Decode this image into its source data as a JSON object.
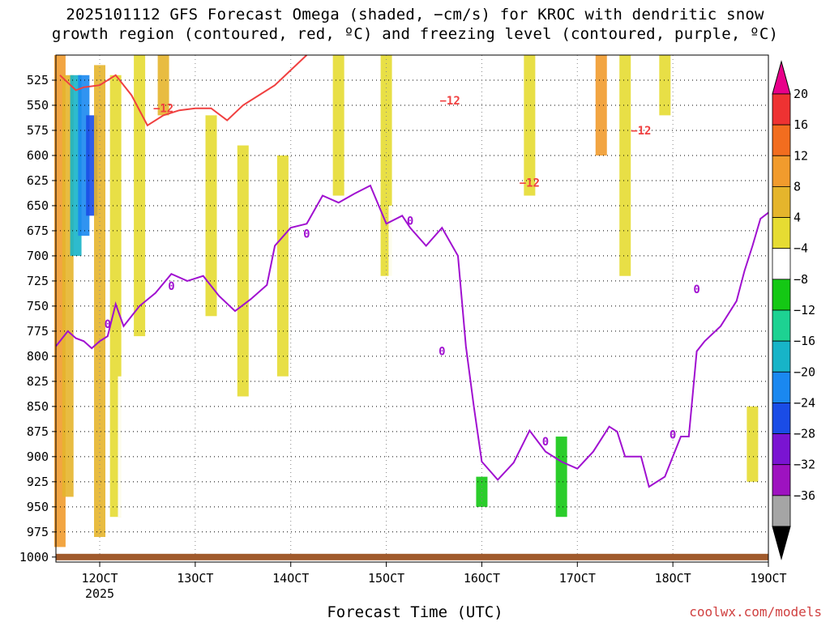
{
  "header": {
    "title_line1": "2025101112 GFS Forecast Omega (shaded, −cm/s) for KROC with dendritic snow",
    "title_line2": "growth region (contoured, red, ºC) and freezing level (contoured, purple, ºC)"
  },
  "footer": {
    "credit": "coolwx.com/models"
  },
  "chart_data": {
    "type": "heatmap",
    "title": "2025101112 GFS Forecast Omega (shaded, −cm/s) for KROC with dendritic snow growth region (contoured, red, ºC) and freezing level (contoured, purple, ºC)",
    "xlabel": "Forecast Time (UTC)",
    "ylabel": "",
    "x_ticks": [
      {
        "hour": 12,
        "label": "12OCT"
      },
      {
        "hour": 24,
        "label": "13OCT"
      },
      {
        "hour": 36,
        "label": "14OCT"
      },
      {
        "hour": 48,
        "label": "15OCT"
      },
      {
        "hour": 60,
        "label": "16OCT"
      },
      {
        "hour": 72,
        "label": "17OCT"
      },
      {
        "hour": 84,
        "label": "18OCT"
      },
      {
        "hour": 96,
        "label": "19OCT"
      }
    ],
    "x_sub_label": "2025",
    "xlim_hours": [
      6.5,
      96
    ],
    "y_levels_hpa": [
      525,
      550,
      575,
      600,
      625,
      650,
      675,
      700,
      725,
      750,
      775,
      800,
      825,
      850,
      875,
      900,
      925,
      950,
      975,
      1000
    ],
    "ylim_hpa": [
      500,
      1005
    ],
    "grid": true,
    "colorbar": {
      "labels": [
        "20",
        "16",
        "12",
        "8",
        "4",
        "−4",
        "−8",
        "−12",
        "−16",
        "−20",
        "−24",
        "−28",
        "−32",
        "−36"
      ],
      "colors": [
        "#e8008a",
        "#ee3232",
        "#f26d1f",
        "#f19b2d",
        "#e5b52c",
        "#e6dc32",
        "#ffffff",
        "#14c814",
        "#1dd292",
        "#17b4c8",
        "#1a88f0",
        "#1a4ce6",
        "#7a14d2",
        "#9e12c0",
        "#a5a5a5",
        "#000000"
      ]
    },
    "omega_patches": [
      {
        "hour": 7,
        "p_top": 500,
        "p_bot": 990,
        "value": 12
      },
      {
        "hour": 8,
        "p_top": 520,
        "p_bot": 940,
        "value": 8
      },
      {
        "hour": 9,
        "p_top": 520,
        "p_bot": 700,
        "value": -16
      },
      {
        "hour": 10,
        "p_top": 520,
        "p_bot": 680,
        "value": -20
      },
      {
        "hour": 11,
        "p_top": 560,
        "p_bot": 660,
        "value": -24
      },
      {
        "hour": 12,
        "p_top": 510,
        "p_bot": 980,
        "value": 8
      },
      {
        "hour": 14,
        "p_top": 520,
        "p_bot": 960,
        "value": 4
      },
      {
        "hour": 15,
        "p_top": 820,
        "p_bot": 960,
        "value": -4
      },
      {
        "hour": 17,
        "p_top": 500,
        "p_bot": 780,
        "value": 4
      },
      {
        "hour": 20,
        "p_top": 500,
        "p_bot": 560,
        "value": 8
      },
      {
        "hour": 21,
        "p_top": 920,
        "p_bot": 975,
        "value": -4
      },
      {
        "hour": 26,
        "p_top": 560,
        "p_bot": 760,
        "value": 4
      },
      {
        "hour": 30,
        "p_top": 590,
        "p_bot": 840,
        "value": 4
      },
      {
        "hour": 35,
        "p_top": 600,
        "p_bot": 820,
        "value": 4
      },
      {
        "hour": 42,
        "p_top": 500,
        "p_bot": 640,
        "value": 4
      },
      {
        "hour": 48,
        "p_top": 500,
        "p_bot": 720,
        "value": 4
      },
      {
        "hour": 49,
        "p_top": 650,
        "p_bot": 740,
        "value": -4
      },
      {
        "hour": 52,
        "p_top": 930,
        "p_bot": 985,
        "value": -4
      },
      {
        "hour": 60,
        "p_top": 845,
        "p_bot": 985,
        "value": -4
      },
      {
        "hour": 60,
        "p_top": 920,
        "p_bot": 950,
        "value": -8
      },
      {
        "hour": 66,
        "p_top": 500,
        "p_bot": 640,
        "value": 4
      },
      {
        "hour": 70,
        "p_top": 820,
        "p_bot": 980,
        "value": -4
      },
      {
        "hour": 70,
        "p_top": 880,
        "p_bot": 960,
        "value": -8
      },
      {
        "hour": 75,
        "p_top": 500,
        "p_bot": 600,
        "value": 12
      },
      {
        "hour": 78,
        "p_top": 500,
        "p_bot": 720,
        "value": 4
      },
      {
        "hour": 83,
        "p_top": 500,
        "p_bot": 560,
        "value": 4
      },
      {
        "hour": 94,
        "p_top": 850,
        "p_bot": 925,
        "value": 4
      }
    ],
    "dgz_contour_label": "−12",
    "dgz_minus12_line": [
      {
        "hour": 7,
        "hpa": 520
      },
      {
        "hour": 9,
        "hpa": 535
      },
      {
        "hour": 10,
        "hpa": 532
      },
      {
        "hour": 12,
        "hpa": 530
      },
      {
        "hour": 14,
        "hpa": 520
      },
      {
        "hour": 16,
        "hpa": 540
      },
      {
        "hour": 18,
        "hpa": 570
      },
      {
        "hour": 20,
        "hpa": 560
      },
      {
        "hour": 22,
        "hpa": 555
      },
      {
        "hour": 24,
        "hpa": 553
      },
      {
        "hour": 26,
        "hpa": 553
      },
      {
        "hour": 28,
        "hpa": 565
      },
      {
        "hour": 30,
        "hpa": 550
      },
      {
        "hour": 32,
        "hpa": 540
      },
      {
        "hour": 34,
        "hpa": 530
      },
      {
        "hour": 36,
        "hpa": 515
      },
      {
        "hour": 38,
        "hpa": 500
      }
    ],
    "freezing_level_label": "0",
    "freezing_level_line": [
      {
        "hour": 6.5,
        "hpa": 790
      },
      {
        "hour": 8,
        "hpa": 775
      },
      {
        "hour": 9,
        "hpa": 782
      },
      {
        "hour": 10,
        "hpa": 785
      },
      {
        "hour": 11,
        "hpa": 792
      },
      {
        "hour": 12,
        "hpa": 785
      },
      {
        "hour": 13,
        "hpa": 780
      },
      {
        "hour": 14,
        "hpa": 748
      },
      {
        "hour": 15,
        "hpa": 770
      },
      {
        "hour": 17,
        "hpa": 750
      },
      {
        "hour": 19,
        "hpa": 737
      },
      {
        "hour": 21,
        "hpa": 718
      },
      {
        "hour": 23,
        "hpa": 725
      },
      {
        "hour": 25,
        "hpa": 720
      },
      {
        "hour": 27,
        "hpa": 740
      },
      {
        "hour": 29,
        "hpa": 755
      },
      {
        "hour": 31,
        "hpa": 743
      },
      {
        "hour": 33,
        "hpa": 729
      },
      {
        "hour": 34,
        "hpa": 690
      },
      {
        "hour": 36,
        "hpa": 672
      },
      {
        "hour": 38,
        "hpa": 668
      },
      {
        "hour": 40,
        "hpa": 640
      },
      {
        "hour": 42,
        "hpa": 647
      },
      {
        "hour": 44,
        "hpa": 638
      },
      {
        "hour": 46,
        "hpa": 630
      },
      {
        "hour": 48,
        "hpa": 668
      },
      {
        "hour": 50,
        "hpa": 660
      },
      {
        "hour": 51,
        "hpa": 672
      },
      {
        "hour": 53,
        "hpa": 690
      },
      {
        "hour": 55,
        "hpa": 672
      },
      {
        "hour": 57,
        "hpa": 700
      },
      {
        "hour": 58,
        "hpa": 790
      },
      {
        "hour": 59,
        "hpa": 850
      },
      {
        "hour": 60,
        "hpa": 905
      },
      {
        "hour": 62,
        "hpa": 923
      },
      {
        "hour": 64,
        "hpa": 906
      },
      {
        "hour": 66,
        "hpa": 874
      },
      {
        "hour": 68,
        "hpa": 895
      },
      {
        "hour": 70,
        "hpa": 905
      },
      {
        "hour": 72,
        "hpa": 912
      },
      {
        "hour": 74,
        "hpa": 895
      },
      {
        "hour": 76,
        "hpa": 870
      },
      {
        "hour": 77,
        "hpa": 875
      },
      {
        "hour": 78,
        "hpa": 900
      },
      {
        "hour": 80,
        "hpa": 900
      },
      {
        "hour": 81,
        "hpa": 930
      },
      {
        "hour": 83,
        "hpa": 920
      },
      {
        "hour": 84,
        "hpa": 900
      },
      {
        "hour": 85,
        "hpa": 880
      },
      {
        "hour": 86,
        "hpa": 880
      },
      {
        "hour": 87,
        "hpa": 795
      },
      {
        "hour": 88,
        "hpa": 785
      },
      {
        "hour": 90,
        "hpa": 770
      },
      {
        "hour": 92,
        "hpa": 745
      },
      {
        "hour": 93,
        "hpa": 715
      },
      {
        "hour": 94,
        "hpa": 690
      },
      {
        "hour": 95,
        "hpa": 663
      },
      {
        "hour": 96,
        "hpa": 657
      }
    ],
    "ground_band_hpa": 1000
  }
}
